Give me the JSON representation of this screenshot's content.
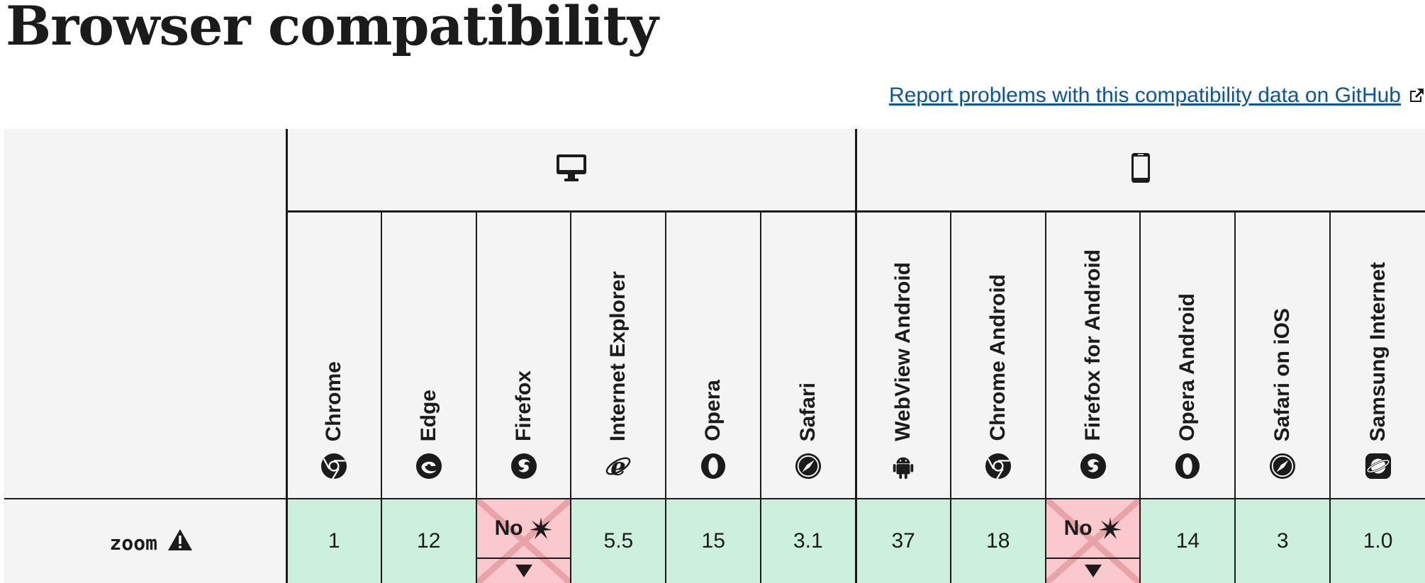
{
  "page": {
    "title": "Browser compatibility",
    "report_link": "Report problems with this compatibility data on GitHub"
  },
  "platforms": {
    "desktop": {
      "icon": "desktop-icon"
    },
    "mobile": {
      "icon": "mobile-icon"
    }
  },
  "browsers": [
    {
      "name": "Chrome",
      "icon": "chrome-icon"
    },
    {
      "name": "Edge",
      "icon": "edge-icon"
    },
    {
      "name": "Firefox",
      "icon": "firefox-icon"
    },
    {
      "name": "Internet Explorer",
      "icon": "internet-explorer-icon"
    },
    {
      "name": "Opera",
      "icon": "opera-icon"
    },
    {
      "name": "Safari",
      "icon": "safari-icon"
    },
    {
      "name": "WebView Android",
      "icon": "android-icon"
    },
    {
      "name": "Chrome Android",
      "icon": "chrome-icon"
    },
    {
      "name": "Firefox for Android",
      "icon": "firefox-icon"
    },
    {
      "name": "Opera Android",
      "icon": "opera-icon"
    },
    {
      "name": "Safari on iOS",
      "icon": "safari-icon"
    },
    {
      "name": "Samsung Internet",
      "icon": "samsung-internet-icon"
    }
  ],
  "feature": {
    "name": "zoom",
    "support": [
      "1",
      "12",
      "No",
      "5.5",
      "15",
      "3.1",
      "37",
      "18",
      "No",
      "14",
      "3",
      "1.0"
    ]
  },
  "colors": {
    "supported": "#ccf0dd",
    "unsupported": "#f9c9cd",
    "link": "#0b5599"
  }
}
